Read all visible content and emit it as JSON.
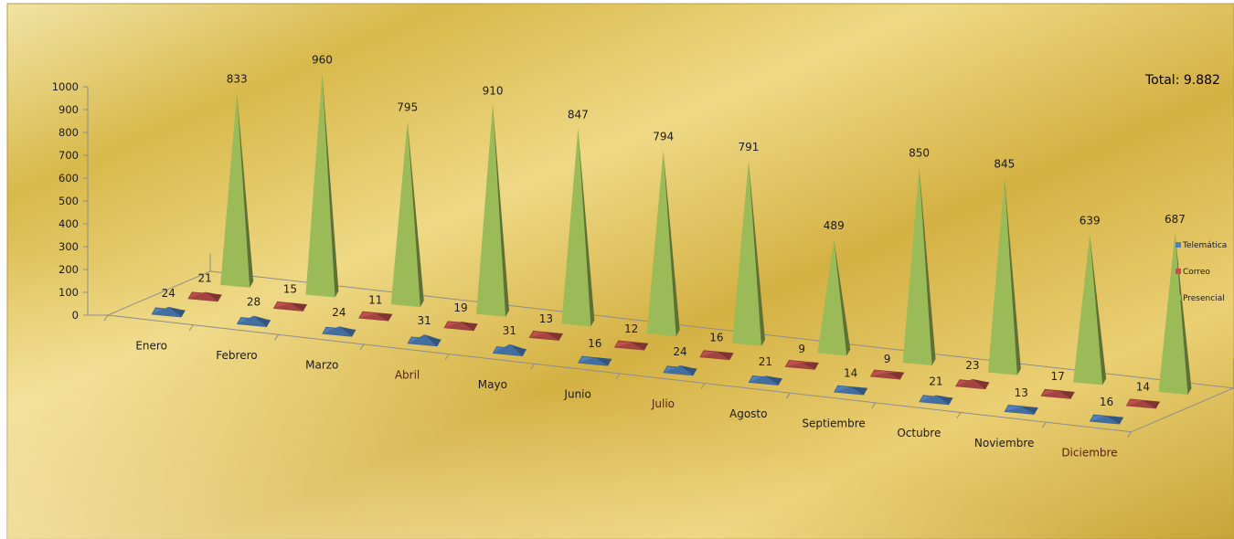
{
  "total_label": "Total: 9.882",
  "chart_data": {
    "type": "bar",
    "style": "3d-pyramid",
    "categories": [
      "Enero",
      "Febrero",
      "Marzo",
      "Abril",
      "Mayo",
      "Junio",
      "Julio",
      "Agosto",
      "Septiembre",
      "Octubre",
      "Noviembre",
      "Diciembre"
    ],
    "series": [
      {
        "name": "Telemática",
        "color": "#4f81bd",
        "values": [
          24,
          28,
          24,
          31,
          31,
          16,
          24,
          21,
          14,
          21,
          13,
          16
        ]
      },
      {
        "name": "Correo",
        "color": "#c0504d",
        "values": [
          21,
          15,
          11,
          19,
          13,
          12,
          16,
          9,
          9,
          23,
          17,
          14
        ]
      },
      {
        "name": "Presencial",
        "color": "#9bbb59",
        "values": [
          833,
          960,
          795,
          910,
          847,
          794,
          791,
          489,
          850,
          845,
          639,
          687
        ]
      }
    ],
    "y_ticks": [
      0,
      100,
      200,
      300,
      400,
      500,
      600,
      700,
      800,
      900,
      1000
    ],
    "ylim": [
      0,
      1000
    ],
    "legend_position": "right",
    "grid": false
  }
}
